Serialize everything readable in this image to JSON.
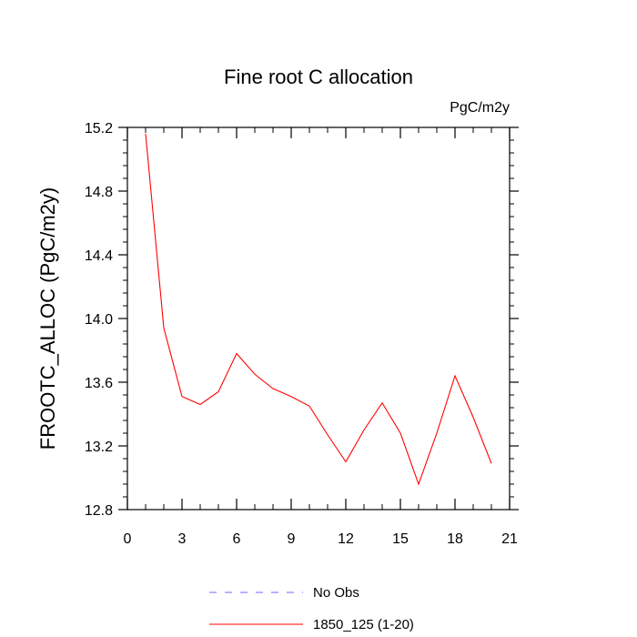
{
  "chart_data": {
    "type": "line",
    "title": "Fine root C allocation",
    "units": "PgC/m2y",
    "xlabel": "",
    "ylabel": "FROOTC_ALLOC  (PgC/m2y)",
    "xlim": [
      0,
      21
    ],
    "ylim": [
      12.8,
      15.2
    ],
    "xticks": [
      0,
      3,
      6,
      9,
      12,
      15,
      18,
      21
    ],
    "yticks": [
      12.8,
      13.2,
      13.6,
      14.0,
      14.4,
      14.8,
      15.2
    ],
    "xtick_labels": [
      "0",
      "3",
      "6",
      "9",
      "12",
      "15",
      "18",
      "21"
    ],
    "ytick_labels": [
      "12.8",
      "13.2",
      "13.6",
      "14.0",
      "14.4",
      "14.8",
      "15.2"
    ],
    "grid": false,
    "legend_position": "bottom",
    "series": [
      {
        "name": "1850_125 (1-20)",
        "color": "#ff0000",
        "style": "solid",
        "x": [
          1,
          2,
          3,
          4,
          5,
          6,
          7,
          8,
          9,
          10,
          11,
          12,
          13,
          14,
          15,
          16,
          17,
          18,
          19,
          20
        ],
        "y": [
          15.16,
          13.94,
          13.51,
          13.46,
          13.54,
          13.78,
          13.65,
          13.56,
          13.51,
          13.45,
          13.27,
          13.1,
          13.3,
          13.47,
          13.28,
          12.96,
          13.28,
          13.64,
          13.38,
          13.09
        ]
      }
    ],
    "legend": [
      {
        "label": "No Obs",
        "color": "#6a6aff",
        "style": "dashed"
      },
      {
        "label": "1850_125 (1-20)",
        "color": "#ff0000",
        "style": "solid"
      }
    ]
  }
}
